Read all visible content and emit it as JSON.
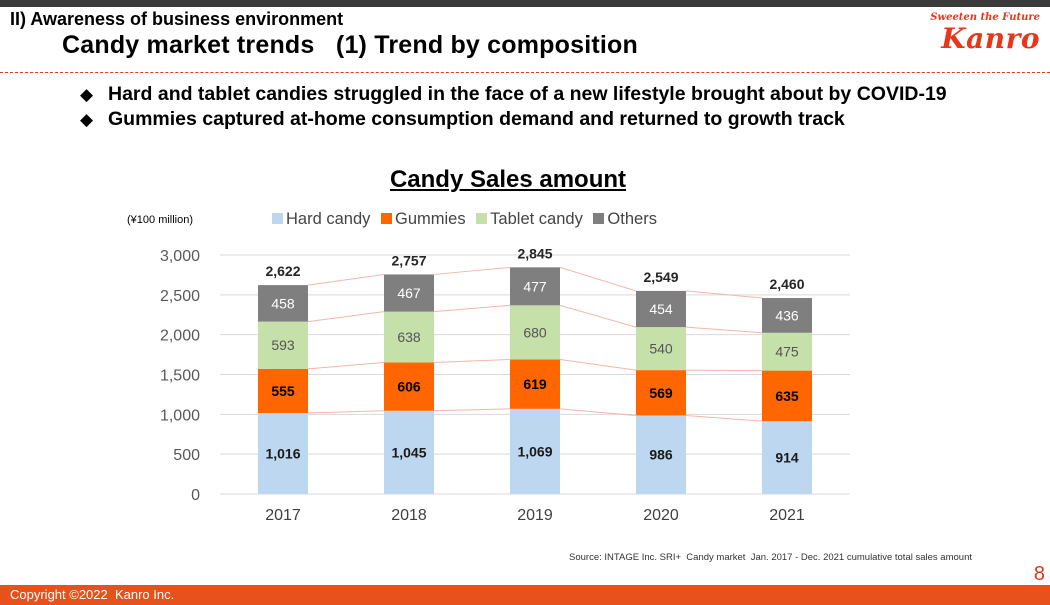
{
  "header": {
    "section": "II) Awareness of business environment",
    "title": "Candy market trends   (1) Trend by composition"
  },
  "brand": {
    "tagline": "Sweeten the Future",
    "logo": "Kanro"
  },
  "bullets": [
    "Hard and tablet candies struggled in the face of a new lifestyle brought about by COVID-19",
    "Gummies captured at-home consumption demand and returned to growth track"
  ],
  "bullet_glyph": "◆",
  "chart_data": {
    "type": "bar",
    "stacked": true,
    "title": "Candy Sales amount",
    "unit_label": "(¥100 million)",
    "categories": [
      "2017",
      "2018",
      "2019",
      "2020",
      "2021"
    ],
    "series": [
      {
        "name": "Hard candy",
        "color": "#bdd7f0",
        "values": [
          1016,
          1045,
          1069,
          986,
          914
        ],
        "labels": [
          "1,016",
          "1,045",
          "1,069",
          "986",
          "914"
        ],
        "label_color": "#1a1a1a",
        "label_bold": true
      },
      {
        "name": "Gummies",
        "color": "#ff6600",
        "values": [
          555,
          606,
          619,
          569,
          635
        ],
        "labels": [
          "555",
          "606",
          "619",
          "569",
          "635"
        ],
        "label_color": "#000000",
        "label_bold": true
      },
      {
        "name": "Tablet candy",
        "color": "#c5e0a8",
        "values": [
          593,
          638,
          680,
          540,
          475
        ],
        "labels": [
          "593",
          "638",
          "680",
          "540",
          "475"
        ],
        "label_color": "#555555",
        "label_bold": false
      },
      {
        "name": "Others",
        "color": "#7f7f7f",
        "values": [
          458,
          467,
          477,
          454,
          436
        ],
        "labels": [
          "458",
          "467",
          "477",
          "454",
          "436"
        ],
        "label_color": "#ffffff",
        "label_bold": false
      }
    ],
    "totals": [
      2622,
      2757,
      2845,
      2549,
      2460
    ],
    "total_labels": [
      "2,622",
      "2,757",
      "2,845",
      "2,549",
      "2,460"
    ],
    "y_ticks": [
      0,
      500,
      1000,
      1500,
      2000,
      2500,
      3000
    ],
    "y_tick_labels": [
      "0",
      "500",
      "1,000",
      "1,500",
      "2,000",
      "2,500",
      "3,000"
    ],
    "ylim": [
      0,
      3000
    ],
    "legend_position": "top",
    "grid": true,
    "connector_color": "#f4b6a8"
  },
  "source": "Source: INTAGE Inc. SRI+  Candy market  Jan. 2017 - Dec. 2021 cumulative total sales amount",
  "page_number": "8",
  "footer": {
    "copyright": "Copyright ©2022  Kanro Inc."
  }
}
